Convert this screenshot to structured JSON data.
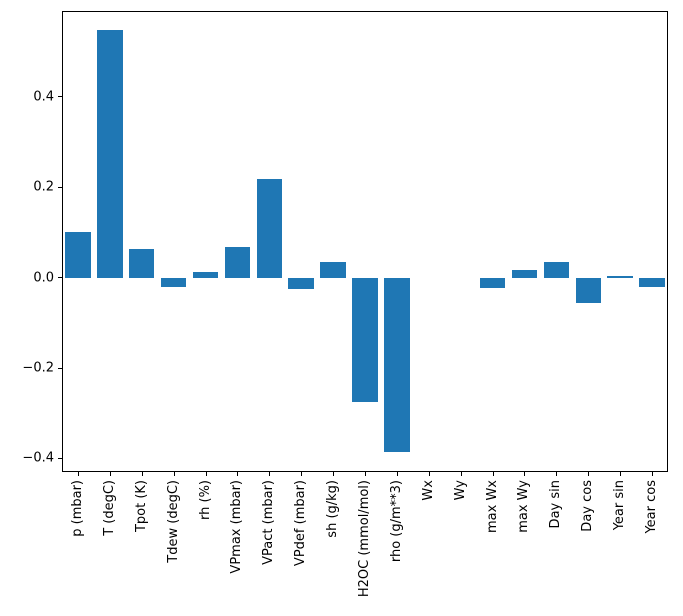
{
  "figure": {
    "background": "#ffffff",
    "frame_color": "#000000"
  },
  "chart_data": {
    "type": "bar",
    "title": "",
    "xlabel": "",
    "ylabel": "",
    "grid": false,
    "legend": false,
    "bar_color": "#1f77b4",
    "ylim": [
      -0.43,
      0.59
    ],
    "categories": [
      "p (mbar)",
      "T (degC)",
      "Tpot (K)",
      "Tdew (degC)",
      "rh (%)",
      "VPmax (mbar)",
      "VPact (mbar)",
      "VPdef (mbar)",
      "sh (g/kg)",
      "H2OC (mmol/mol)",
      "rho (g/m**3)",
      "Wx",
      "Wy",
      "max Wx",
      "max Wy",
      "Day sin",
      "Day cos",
      "Year sin",
      "Year cos"
    ],
    "values": [
      0.1,
      0.547,
      0.064,
      -0.02,
      0.012,
      0.067,
      0.218,
      -0.024,
      0.035,
      -0.275,
      -0.385,
      0.0,
      0.0,
      -0.022,
      0.017,
      0.035,
      -0.057,
      0.003,
      -0.02
    ],
    "yticks": [
      {
        "label": "−0.4",
        "value": -0.4
      },
      {
        "label": "−0.2",
        "value": -0.2
      },
      {
        "label": "0.0",
        "value": 0.0
      },
      {
        "label": "0.2",
        "value": 0.2
      },
      {
        "label": "0.4",
        "value": 0.4
      }
    ]
  }
}
